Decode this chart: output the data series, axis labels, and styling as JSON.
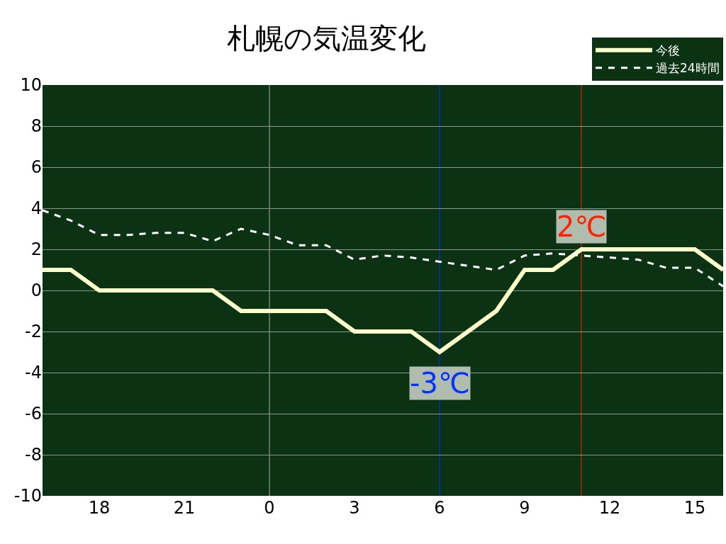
{
  "chart_data": {
    "type": "line",
    "title": "札幌の気温変化",
    "categories": [
      null,
      null,
      "18",
      null,
      null,
      "21",
      null,
      null,
      "0",
      null,
      null,
      "3",
      null,
      null,
      "6",
      null,
      null,
      "9",
      null,
      null,
      "12",
      null,
      null,
      "15",
      null
    ],
    "series": [
      {
        "name": "今後",
        "color": "#ffffcc",
        "line_style": "solid",
        "values": [
          1,
          1,
          0,
          0,
          0,
          0,
          0,
          -1,
          -1,
          -1,
          -1,
          -2,
          -2,
          -2,
          -3,
          -2,
          -1,
          1,
          1,
          2,
          2,
          2,
          2,
          2,
          1
        ]
      },
      {
        "name": "過去24時間",
        "color": "#ffffff",
        "line_style": "dashed",
        "values": [
          3.9,
          3.4,
          2.7,
          2.7,
          2.8,
          2.8,
          2.4,
          3.0,
          2.7,
          2.2,
          2.2,
          1.5,
          1.7,
          1.6,
          1.4,
          1.2,
          1.0,
          1.7,
          1.8,
          1.7,
          1.6,
          1.5,
          1.1,
          1.1,
          0.2
        ]
      }
    ],
    "ylim": [
      -10,
      10
    ],
    "yticks": [
      -10,
      -8,
      -6,
      -4,
      -2,
      0,
      2,
      4,
      6,
      8,
      10
    ],
    "ref_lines": [
      {
        "axis": "x",
        "value": "0",
        "color": "#aaaaaa"
      },
      {
        "axis": "x",
        "value": "6",
        "color": "#0033ff"
      }
    ],
    "annotations": [
      {
        "text": "-3℃",
        "x": "6",
        "y": -3
      },
      {
        "text": "2℃",
        "y": 2
      }
    ],
    "grid": "y",
    "legend": "top right",
    "marker": "none"
  }
}
